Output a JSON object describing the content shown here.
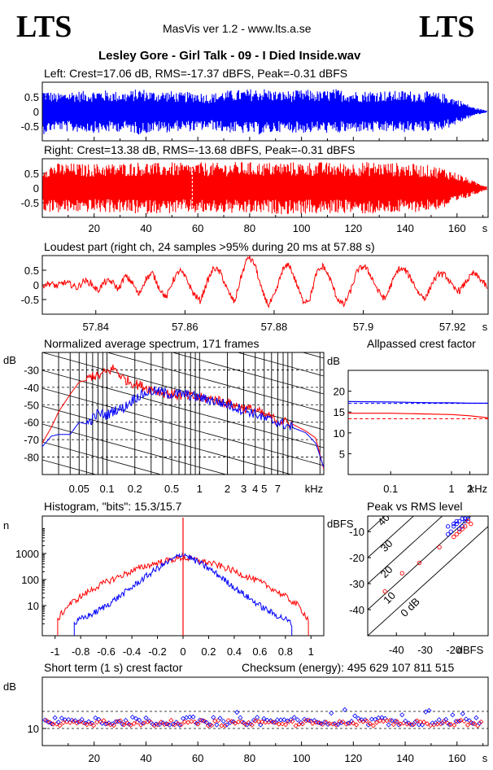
{
  "header": {
    "logo_left": "LTS",
    "logo_right": "LTS",
    "app_title": "MasVis ver 1.2 - www.lts.a.se",
    "file_title": "Lesley Gore - Girl Talk - 09 - I Died Inside.wav"
  },
  "chart_data": [
    {
      "id": "waveform-left",
      "type": "line",
      "title": "Left: Crest=17.06 dB, RMS=-17.37 dBFS, Peak=-0.31 dBFS",
      "ylim": [
        -1,
        1
      ],
      "yticks": [
        "0.5",
        "0",
        "-0.5"
      ],
      "xlim": [
        0,
        172
      ],
      "color": "#0000ff",
      "envelope_amplitude": [
        0.78,
        0.62,
        0.72,
        0.7,
        0.75,
        0.7,
        0.68,
        0.8,
        0.7,
        0.72,
        0.65,
        0.7,
        0.6,
        0.72,
        0.74,
        0.78,
        0.8,
        0.7,
        0.72,
        0.75,
        0.7,
        0.78,
        0.72,
        0.7,
        0.74,
        0.7,
        0.72,
        0.7,
        0.68,
        0.6,
        0.4,
        0.15,
        0.03
      ]
    },
    {
      "id": "waveform-right",
      "type": "line",
      "title": "Right: Crest=13.38 dB, RMS=-13.68 dBFS, Peak=-0.31 dBFS",
      "ylim": [
        -1,
        1
      ],
      "yticks": [
        "0.5",
        "0",
        "-0.5"
      ],
      "xlim": [
        0,
        172
      ],
      "xticks": [
        "20",
        "40",
        "60",
        "80",
        "100",
        "120",
        "140",
        "160"
      ],
      "xunit": "s",
      "color": "#ff0000",
      "marker_x": 57.88,
      "envelope_amplitude": [
        0.8,
        0.85,
        0.85,
        0.82,
        0.85,
        0.84,
        0.88,
        0.9,
        0.86,
        0.88,
        0.85,
        0.88,
        0.86,
        0.88,
        0.9,
        0.88,
        0.88,
        0.9,
        0.88,
        0.9,
        0.88,
        0.86,
        0.88,
        0.9,
        0.88,
        0.86,
        0.82,
        0.78,
        0.7,
        0.5,
        0.25,
        0.06
      ]
    },
    {
      "id": "loudest-part",
      "type": "line",
      "title": "Loudest part (right ch, 24 samples >95% during 20 ms at 57.88 s)",
      "ylim": [
        -1,
        1
      ],
      "yticks": [
        "0.5",
        "0",
        "-0.5"
      ],
      "xlim": [
        57.828,
        57.928
      ],
      "xticks": [
        "57.84",
        "57.86",
        "57.88",
        "57.9",
        "57.92"
      ],
      "xunit": "s",
      "color": "#ff0000",
      "values": [
        0.0,
        0.05,
        -0.05,
        0.08,
        0.02,
        -0.1,
        0.15,
        0.05,
        -0.2,
        0.1,
        0.12,
        -0.15,
        0.3,
        0.1,
        -0.35,
        0.2,
        0.4,
        -0.1,
        -0.45,
        0.15,
        0.5,
        0.2,
        -0.3,
        -0.55,
        0.1,
        0.6,
        0.4,
        -0.2,
        -0.6,
        0.3,
        0.98,
        0.7,
        -0.2,
        -0.7,
        -0.3,
        0.5,
        0.7,
        0.1,
        -0.55,
        -0.5,
        0.4,
        0.65,
        0.2,
        -0.45,
        -0.7,
        -0.2,
        0.5,
        0.65,
        0.3,
        -0.2,
        -0.5,
        0.05,
        0.55,
        0.5,
        0.15,
        -0.3,
        -0.45,
        0.1,
        0.4,
        0.3,
        -0.1,
        -0.2,
        0.15,
        0.4,
        0.2,
        -0.1
      ]
    },
    {
      "id": "avg-spectrum",
      "type": "line",
      "title": "Normalized average spectrum, 171 frames",
      "ylabel": "dB",
      "yticks": [
        "-30",
        "-40",
        "-50",
        "-60",
        "-70",
        "-80"
      ],
      "ylim": [
        -90,
        -20
      ],
      "xscale": "log",
      "xlim": [
        0.02,
        22
      ],
      "xticks": [
        "0.05",
        "0.1",
        "0.2",
        "0.5",
        "1",
        "2",
        "3",
        "4",
        "5",
        "7"
      ],
      "xunit": "kHz",
      "series": [
        {
          "color": "#ff0000",
          "x": [
            0.02,
            0.025,
            0.03,
            0.04,
            0.05,
            0.06,
            0.07,
            0.08,
            0.1,
            0.12,
            0.15,
            0.2,
            0.3,
            0.4,
            0.5,
            0.7,
            1,
            1.5,
            2,
            3,
            4,
            5,
            7,
            10,
            14,
            18,
            22
          ],
          "y": [
            -72,
            -63,
            -54,
            -44,
            -37,
            -36,
            -33,
            -34,
            -31,
            -29,
            -35,
            -38,
            -41,
            -43,
            -44,
            -45,
            -46,
            -47,
            -49,
            -52,
            -53,
            -56,
            -59,
            -61,
            -65,
            -69,
            -87
          ]
        },
        {
          "color": "#0000ff",
          "x": [
            0.02,
            0.025,
            0.03,
            0.04,
            0.05,
            0.06,
            0.07,
            0.08,
            0.1,
            0.12,
            0.15,
            0.2,
            0.3,
            0.4,
            0.5,
            0.7,
            1,
            1.5,
            2,
            3,
            4,
            5,
            7,
            10,
            14,
            18,
            22
          ],
          "y": [
            -74,
            -68,
            -67,
            -67,
            -60,
            -61,
            -58,
            -55,
            -56,
            -53,
            -52,
            -46,
            -42,
            -43,
            -44,
            -44,
            -46,
            -48,
            -50,
            -53,
            -55,
            -58,
            -60,
            -63,
            -66,
            -72,
            -86
          ]
        }
      ]
    },
    {
      "id": "allpassed-crest",
      "type": "line",
      "title": "Allpassed crest factor",
      "ylabel": "dB",
      "yticks": [
        "20",
        "15",
        "10",
        "5"
      ],
      "ylim": [
        0,
        25
      ],
      "xscale": "log",
      "xlim": [
        0.02,
        4
      ],
      "xticks": [
        "0.1",
        "1",
        "2"
      ],
      "xunit": "kHz",
      "series": [
        {
          "color": "#0000ff",
          "x": [
            0.02,
            0.1,
            0.5,
            1,
            2,
            4
          ],
          "y": [
            17.5,
            17.4,
            17.2,
            17.2,
            17.1,
            17.1
          ]
        },
        {
          "color": "#ff0000",
          "x": [
            0.02,
            0.1,
            0.5,
            1,
            2,
            4
          ],
          "y": [
            14.7,
            14.7,
            14.5,
            14.4,
            14.1,
            13.6
          ]
        }
      ],
      "reference_lines": [
        {
          "color": "#0000ff",
          "y": 17.06
        },
        {
          "color": "#ff0000",
          "y": 13.38
        }
      ]
    },
    {
      "id": "histogram",
      "type": "line",
      "title": "Histogram, \"bits\": 15.3/15.7",
      "ylabel": "n",
      "yscale": "log",
      "ylim": [
        1,
        100000
      ],
      "yticks": [
        "1000",
        "100",
        "10"
      ],
      "xlim": [
        -1.1,
        1.1
      ],
      "xticks": [
        "-1",
        "-0.8",
        "-0.6",
        "-0.4",
        "-0.2",
        "0",
        "0.2",
        "0.4",
        "0.6",
        "0.8",
        "1"
      ],
      "series": [
        {
          "color": "#ff0000",
          "x": [
            -0.98,
            -0.9,
            -0.8,
            -0.7,
            -0.6,
            -0.5,
            -0.4,
            -0.3,
            -0.2,
            -0.1,
            0,
            0.1,
            0.2,
            0.3,
            0.4,
            0.5,
            0.6,
            0.7,
            0.8,
            0.9,
            0.98
          ],
          "y": [
            3,
            10,
            22,
            45,
            80,
            130,
            210,
            320,
            440,
            560,
            700,
            560,
            440,
            320,
            210,
            130,
            80,
            45,
            22,
            10,
            3
          ]
        },
        {
          "color": "#0000ff",
          "x": [
            -0.85,
            -0.8,
            -0.7,
            -0.6,
            -0.5,
            -0.4,
            -0.3,
            -0.2,
            -0.1,
            0,
            0.1,
            0.2,
            0.3,
            0.4,
            0.5,
            0.6,
            0.7,
            0.8,
            0.85
          ],
          "y": [
            2,
            3,
            5,
            10,
            22,
            50,
            120,
            270,
            520,
            1000,
            520,
            270,
            120,
            50,
            22,
            10,
            5,
            3,
            2
          ]
        }
      ]
    },
    {
      "id": "peak-vs-rms",
      "type": "scatter",
      "title": "Peak vs RMS level",
      "ylabel": "dBFS",
      "xlabel": "dBFS",
      "xlim": [
        -50,
        -8
      ],
      "ylim": [
        -50,
        -4
      ],
      "xticks": [
        "-40",
        "-30",
        "-20"
      ],
      "yticks": [
        "-10",
        "-20",
        "-30",
        "-40"
      ],
      "crest_lines": [
        "0 dB",
        "10",
        "20",
        "30",
        "40"
      ],
      "series": [
        {
          "color": "#0000ff",
          "x": [
            -22,
            -20,
            -19,
            -18,
            -17,
            -16,
            -15,
            -18,
            -21,
            -20,
            -19,
            -17,
            -16,
            -22
          ],
          "y": [
            -8,
            -7,
            -6,
            -6,
            -5,
            -5,
            -5,
            -9,
            -10,
            -8,
            -7,
            -8,
            -6,
            -11
          ]
        },
        {
          "color": "#ff0000",
          "x": [
            -44,
            -38,
            -32,
            -25,
            -20,
            -18,
            -16,
            -17,
            -15,
            -19,
            -14
          ],
          "y": [
            -33,
            -26,
            -22,
            -16,
            -12,
            -10,
            -8,
            -9,
            -6,
            -11,
            -7
          ]
        }
      ]
    },
    {
      "id": "short-term-crest",
      "type": "scatter",
      "title": "Short term (1 s) crest factor",
      "ylabel": "dB",
      "yticks": [
        "10"
      ],
      "ylim": [
        5,
        25
      ],
      "xlim": [
        0,
        172
      ],
      "xticks": [
        "20",
        "40",
        "60",
        "80",
        "100",
        "120",
        "140",
        "160"
      ],
      "xunit": "s",
      "reference_lines": [
        {
          "y": 15
        },
        {
          "y": 10
        }
      ]
    }
  ],
  "checksum": "Checksum (energy):   495 629 107 811 515"
}
